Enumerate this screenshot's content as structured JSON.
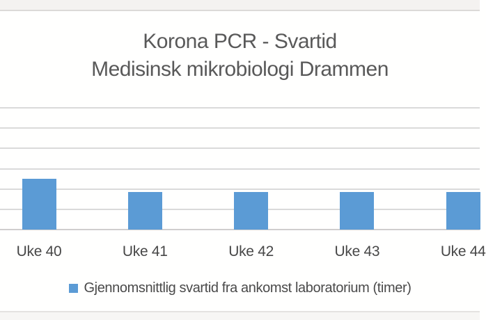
{
  "window": {
    "top_strip_color": "#f4f2f0",
    "top_strip_divider_color": "#dcdad8",
    "bottom_strip_color": "#f7f6f4",
    "bottom_strip_divider_color": "#e4e2e0",
    "background": "#fffffe"
  },
  "chart_data": {
    "type": "bar",
    "title": "Korona PCR - Svartid Medisinsk mikrobiologi Drammen",
    "title_lines": [
      "Korona PCR - Svartid",
      "Medisinsk mikrobiologi Drammen"
    ],
    "categories": [
      "Uke 40",
      "Uke 41",
      "Uke 42",
      "Uke 43",
      "Uke 44"
    ],
    "series": [
      {
        "name": "Gjennomsnittlig svartid fra ankomst laboratorium (timer)",
        "color": "#5b9bd5",
        "values": [
          2.5,
          1.85,
          1.85,
          1.85,
          1.85
        ]
      }
    ],
    "xlabel": "",
    "ylabel": "",
    "ylim": [
      0,
      6
    ],
    "y_gridline_interval": 1,
    "grid": true,
    "y_tick_labels_visible": false,
    "values_note": "y-axis tick labels are cropped out of view; values estimated in gridline units from the baseline",
    "legend_position": "bottom",
    "gridline_color": "#dadada",
    "axis_line_color": "#d0cece",
    "title_color": "#595959",
    "tick_label_color": "#474747",
    "clipping_note": "chart cropped at left and right edges; fifth bar and its label partially cut off"
  },
  "legend": {
    "marker": "square",
    "marker_color": "#5b9bd5",
    "label": "Gjennomsnittlig svartid fra ankomst laboratorium (timer)"
  }
}
